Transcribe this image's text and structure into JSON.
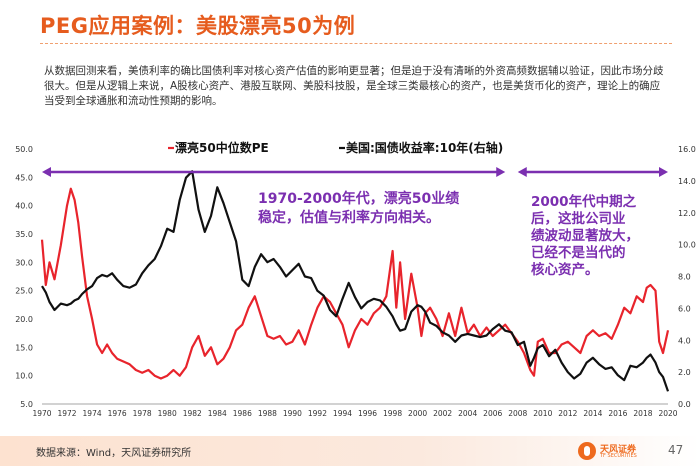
{
  "header": {
    "title": "PEG应用案例：美股漂亮50为例",
    "description": "从数据回测来看，美债利率的确比国债利率对核心资产估值的影响更显著；但是迫于没有清晰的外资高频数据辅以验证，因此市场分歧很大。但是从逻辑上来说，A股核心资产、港股互联网、美股科技股，是全球三类最核心的资产，也是美货币化的资产，理论上的确应当受到全球通胀和流动性预期的影响。"
  },
  "footer": {
    "source": "数据来源：Wind，天风证券研究所",
    "logo_name": "天风证券",
    "logo_sub": "TF SECURITIES",
    "page_number": "47"
  },
  "colors": {
    "pe": "#e8242c",
    "yield": "#111111",
    "annotation": "#7b2fb0",
    "brand": "#e65c1e"
  },
  "chart_data": {
    "type": "line",
    "x": [
      1970,
      1970.3,
      1970.6,
      1971,
      1971.5,
      1972,
      1972.3,
      1972.6,
      1972.9,
      1973.2,
      1973.6,
      1974,
      1974.4,
      1974.8,
      1975.2,
      1975.6,
      1976,
      1976.5,
      1977,
      1977.5,
      1978,
      1978.5,
      1979,
      1979.5,
      1980,
      1980.5,
      1981,
      1981.5,
      1982,
      1982.5,
      1983,
      1983.5,
      1984,
      1984.5,
      1985,
      1985.5,
      1986,
      1986.5,
      1987,
      1987.5,
      1988,
      1988.5,
      1989,
      1989.5,
      1990,
      1990.5,
      1991,
      1991.5,
      1992,
      1992.5,
      1993,
      1993.5,
      1994,
      1994.5,
      1995,
      1995.5,
      1996,
      1996.5,
      1997,
      1997.5,
      1998,
      1998.3,
      1998.6,
      1999,
      1999.5,
      2000,
      2000.3,
      2000.6,
      2001,
      2001.5,
      2002,
      2002.5,
      2003,
      2003.5,
      2004,
      2004.5,
      2005,
      2005.5,
      2006,
      2006.5,
      2007,
      2007.5,
      2008,
      2008.5,
      2009,
      2009.3,
      2009.6,
      2010,
      2010.5,
      2011,
      2011.5,
      2012,
      2012.5,
      2013,
      2013.5,
      2014,
      2014.5,
      2015,
      2015.5,
      2016,
      2016.5,
      2017,
      2017.5,
      2018,
      2018.3,
      2018.6,
      2019,
      2019.3,
      2019.6,
      2020
    ],
    "series": [
      {
        "name": "漂亮50中位数PE",
        "axis": "left",
        "values": [
          34.0,
          26.0,
          30.0,
          27.0,
          33.0,
          40.0,
          43.0,
          41.0,
          37.0,
          31.0,
          24.0,
          20.0,
          15.5,
          14.0,
          15.5,
          14.0,
          13.0,
          12.5,
          12.0,
          11.0,
          10.5,
          11.0,
          10.0,
          9.5,
          10.0,
          11.0,
          10.0,
          11.5,
          15.0,
          17.0,
          13.5,
          15.0,
          12.0,
          13.0,
          15.0,
          18.0,
          19.0,
          22.0,
          24.0,
          20.5,
          17.0,
          16.5,
          17.0,
          15.5,
          16.0,
          18.0,
          15.5,
          19.0,
          22.0,
          24.0,
          23.0,
          21.0,
          19.0,
          15.0,
          18.0,
          20.0,
          19.0,
          21.0,
          22.0,
          24.0,
          32.0,
          22.0,
          30.0,
          20.0,
          28.0,
          22.0,
          17.0,
          21.0,
          22.0,
          20.0,
          17.0,
          21.0,
          17.0,
          22.0,
          17.5,
          19.0,
          17.0,
          18.5,
          17.0,
          18.0,
          19.0,
          17.5,
          16.0,
          14.0,
          11.0,
          10.0,
          16.0,
          16.5,
          14.0,
          14.0,
          15.5,
          16.0,
          15.0,
          14.0,
          17.0,
          18.0,
          17.0,
          17.5,
          16.5,
          19.0,
          22.0,
          21.0,
          24.0,
          23.0,
          25.5,
          26.0,
          25.0,
          16.0,
          14.0,
          18.0
        ]
      },
      {
        "name": "美国:国债收益率:10年(右轴)",
        "axis": "right",
        "values": [
          7.4,
          7.0,
          6.4,
          5.9,
          6.3,
          6.2,
          6.3,
          6.5,
          6.6,
          6.9,
          7.2,
          7.4,
          7.9,
          8.1,
          8.0,
          8.2,
          7.8,
          7.4,
          7.3,
          7.5,
          8.2,
          8.7,
          9.1,
          9.9,
          11.0,
          10.8,
          12.8,
          14.2,
          14.6,
          12.2,
          10.8,
          11.8,
          13.6,
          12.6,
          11.4,
          10.2,
          7.8,
          7.4,
          8.6,
          9.4,
          8.9,
          9.1,
          8.6,
          8.0,
          8.4,
          8.8,
          8.0,
          7.9,
          7.1,
          6.8,
          5.9,
          5.5,
          6.6,
          7.6,
          6.7,
          6.0,
          6.4,
          6.6,
          6.5,
          6.1,
          5.5,
          5.0,
          4.6,
          4.7,
          5.8,
          6.2,
          6.1,
          5.8,
          5.1,
          4.9,
          4.5,
          4.3,
          3.9,
          4.3,
          4.4,
          4.3,
          4.2,
          4.3,
          4.7,
          5.0,
          4.6,
          4.5,
          3.7,
          3.9,
          2.4,
          2.9,
          3.5,
          3.7,
          3.0,
          3.4,
          2.6,
          2.0,
          1.6,
          1.9,
          2.6,
          2.9,
          2.5,
          2.2,
          2.3,
          1.8,
          1.5,
          2.4,
          2.3,
          2.6,
          2.9,
          3.1,
          2.6,
          2.0,
          1.7,
          0.8
        ]
      }
    ],
    "y_left": {
      "ticks": [
        "50.0",
        "45.0",
        "40.0",
        "35.0",
        "30.0",
        "25.0",
        "20.0",
        "15.0",
        "10.0",
        "5.0"
      ],
      "min": 5,
      "max": 50
    },
    "y_right": {
      "ticks": [
        "16.0",
        "14.0",
        "12.0",
        "10.0",
        "8.0",
        "6.0",
        "4.0",
        "2.0",
        "0.0"
      ],
      "min": 0,
      "max": 16
    },
    "x_ticks": [
      "1970",
      "1972",
      "1974",
      "1976",
      "1978",
      "1980",
      "1982",
      "1984",
      "1986",
      "1988",
      "1990",
      "1992",
      "1994",
      "1996",
      "1998",
      "2000",
      "2002",
      "2004",
      "2006",
      "2008",
      "2010",
      "2012",
      "2014",
      "2016",
      "2018",
      "2020"
    ],
    "x_range": [
      1970,
      2020
    ],
    "grid": false,
    "legend": [
      {
        "label": "漂亮50中位数PE",
        "color": "#e8242c"
      },
      {
        "label": "美国:国债收益率:10年(右轴)",
        "color": "#111111"
      }
    ],
    "legend_position": "top",
    "periods": [
      {
        "start": 1970,
        "end": 2007
      },
      {
        "start": 2008,
        "end": 2020
      }
    ],
    "annotations": [
      {
        "lines": [
          "1970-2000年代，漂亮50业绩",
          "稳定，估值与利率方向相关。"
        ]
      },
      {
        "lines": [
          "2000年代中期之",
          "后，这批公司业",
          "绩波动显著放大，",
          "已经不是当代的",
          "核心资产。"
        ]
      }
    ]
  }
}
